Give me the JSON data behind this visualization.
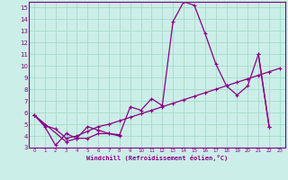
{
  "xlabel": "Windchill (Refroidissement éolien,°C)",
  "background_color": "#cceee8",
  "grid_color": "#aaddcc",
  "line_color": "#880088",
  "xlim": [
    -0.5,
    23.5
  ],
  "ylim": [
    3,
    15.5
  ],
  "xtick_labels": [
    "0",
    "1",
    "2",
    "3",
    "4",
    "5",
    "6",
    "7",
    "8",
    "9",
    "10",
    "11",
    "12",
    "13",
    "14",
    "15",
    "16",
    "17",
    "18",
    "19",
    "20",
    "21",
    "22",
    "23"
  ],
  "ytick_labels": [
    "3",
    "4",
    "5",
    "6",
    "7",
    "8",
    "9",
    "10",
    "11",
    "12",
    "13",
    "14",
    "15"
  ],
  "series": [
    {
      "x": [
        0,
        1,
        2,
        3,
        4,
        5,
        6,
        7,
        8,
        9,
        10,
        11,
        12,
        13,
        14,
        15,
        16,
        17,
        18,
        19,
        20,
        21,
        22
      ],
      "y": [
        5.8,
        4.8,
        3.2,
        4.2,
        3.8,
        4.8,
        4.5,
        4.2,
        4.1,
        6.5,
        6.2,
        7.2,
        6.6,
        13.8,
        15.5,
        15.2,
        12.8,
        10.2,
        8.3,
        7.5,
        8.3,
        11.0,
        4.8
      ]
    },
    {
      "x": [
        0,
        1,
        2,
        3,
        4,
        5,
        6,
        7,
        8,
        9,
        10,
        11,
        12,
        13,
        14,
        15,
        16,
        17,
        18,
        19,
        20,
        21,
        22,
        23
      ],
      "y": [
        5.8,
        4.9,
        4.6,
        3.8,
        4.0,
        4.4,
        4.8,
        5.0,
        5.3,
        5.6,
        5.9,
        6.2,
        6.5,
        6.8,
        7.1,
        7.4,
        7.7,
        8.0,
        8.3,
        8.6,
        8.9,
        9.2,
        9.5,
        9.8
      ]
    },
    {
      "x": [
        0,
        3,
        4,
        5,
        6,
        7,
        8
      ],
      "y": [
        5.8,
        3.5,
        3.8,
        3.8,
        4.2,
        4.2,
        4.0
      ]
    },
    {
      "x": [
        21,
        22
      ],
      "y": [
        11.0,
        4.8
      ]
    }
  ]
}
